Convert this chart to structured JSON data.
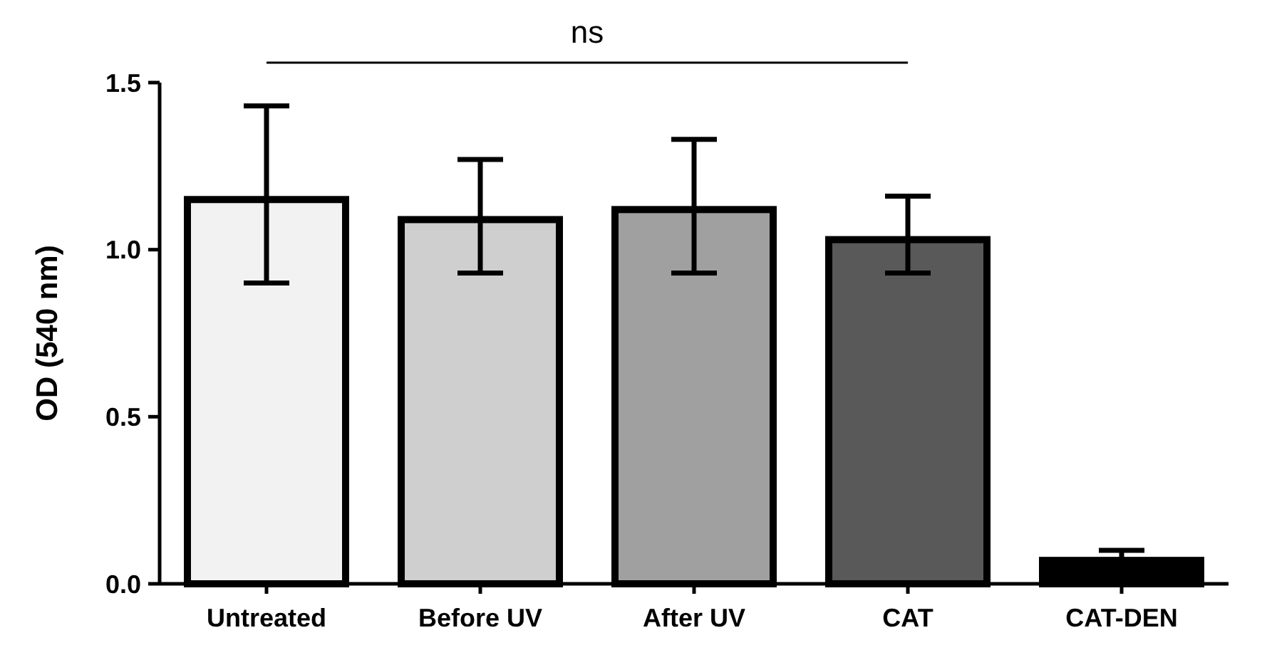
{
  "chart_data": {
    "type": "bar",
    "ylabel": "OD (540 nm)",
    "categories": [
      "Untreated",
      "Before UV",
      "After UV",
      "CAT",
      "CAT-DEN"
    ],
    "values": [
      1.15,
      1.09,
      1.12,
      1.03,
      0.07
    ],
    "colors": [
      "#f2f2f2",
      "#cfcfcf",
      "#a0a0a0",
      "#595959",
      "#000000"
    ],
    "errors": [
      [
        0.9,
        1.43
      ],
      [
        0.93,
        1.27
      ],
      [
        0.93,
        1.33
      ],
      [
        0.93,
        1.16
      ],
      0.03
    ],
    "ylim": [
      0,
      1.5
    ],
    "yticks": [
      {
        "value": 0,
        "label": "0.0"
      },
      0.5,
      {
        "value": 1,
        "label": "1.0"
      },
      1.5
    ],
    "annotations": [
      "ns"
    ],
    "grid": false
  }
}
